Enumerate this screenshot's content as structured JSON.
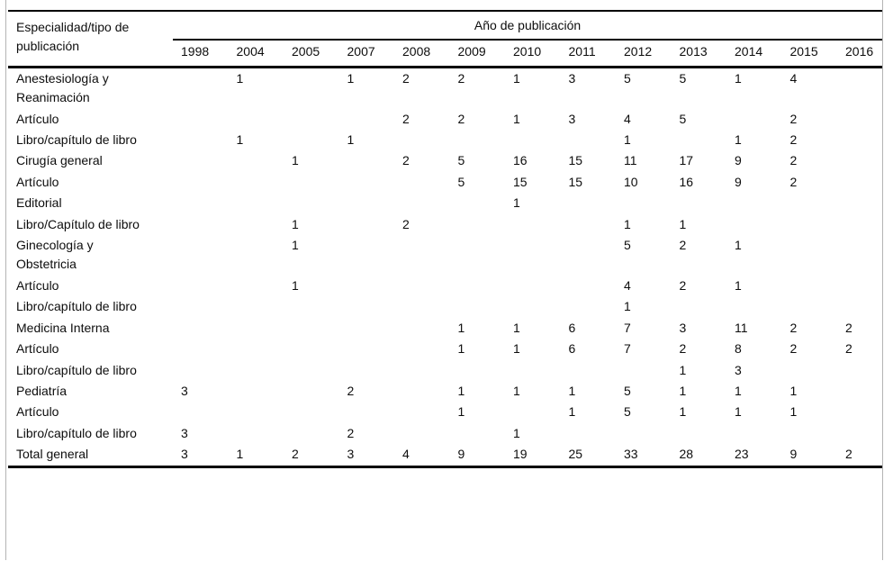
{
  "chart_data": {
    "type": "table",
    "corner_header": "Especialidad/tipo de publicación",
    "column_group_header": "Año de publicación",
    "columns": [
      "1998",
      "2004",
      "2005",
      "2007",
      "2008",
      "2009",
      "2010",
      "2011",
      "2012",
      "2013",
      "2014",
      "2015",
      "2016"
    ],
    "rows": [
      {
        "label": "Anestesiología y Reanimación",
        "values": [
          "",
          "1",
          "",
          "1",
          "2",
          "2",
          "1",
          "3",
          "5",
          "5",
          "1",
          "4",
          ""
        ]
      },
      {
        "label": "Artículo",
        "values": [
          "",
          "",
          "",
          "",
          "2",
          "2",
          "1",
          "3",
          "4",
          "5",
          "",
          "2",
          ""
        ]
      },
      {
        "label": "Libro/capítulo de libro",
        "values": [
          "",
          "1",
          "",
          "1",
          "",
          "",
          "",
          "",
          "1",
          "",
          "1",
          "2",
          ""
        ]
      },
      {
        "label": "Cirugía general",
        "values": [
          "",
          "",
          "1",
          "",
          "2",
          "5",
          "16",
          "15",
          "11",
          "17",
          "9",
          "2",
          ""
        ]
      },
      {
        "label": "Artículo",
        "values": [
          "",
          "",
          "",
          "",
          "",
          "5",
          "15",
          "15",
          "10",
          "16",
          "9",
          "2",
          ""
        ]
      },
      {
        "label": "Editorial",
        "values": [
          "",
          "",
          "",
          "",
          "",
          "",
          "1",
          "",
          "",
          "",
          "",
          "",
          ""
        ]
      },
      {
        "label": "Libro/Capítulo de libro",
        "values": [
          "",
          "",
          "1",
          "",
          "2",
          "",
          "",
          "",
          "1",
          "1",
          "",
          "",
          ""
        ]
      },
      {
        "label": "Ginecología y Obstetricia",
        "values": [
          "",
          "",
          "1",
          "",
          "",
          "",
          "",
          "",
          "5",
          "2",
          "1",
          "",
          ""
        ]
      },
      {
        "label": "Artículo",
        "values": [
          "",
          "",
          "1",
          "",
          "",
          "",
          "",
          "",
          "4",
          "2",
          "1",
          "",
          ""
        ]
      },
      {
        "label": "Libro/capítulo de libro",
        "values": [
          "",
          "",
          "",
          "",
          "",
          "",
          "",
          "",
          "1",
          "",
          "",
          "",
          ""
        ]
      },
      {
        "label": "Medicina Interna",
        "values": [
          "",
          "",
          "",
          "",
          "",
          "1",
          "1",
          "6",
          "7",
          "3",
          "11",
          "2",
          "2"
        ]
      },
      {
        "label": "Artículo",
        "values": [
          "",
          "",
          "",
          "",
          "",
          "1",
          "1",
          "6",
          "7",
          "2",
          "8",
          "2",
          "2"
        ]
      },
      {
        "label": "Libro/capítulo de libro",
        "values": [
          "",
          "",
          "",
          "",
          "",
          "",
          "",
          "",
          "",
          "1",
          "3",
          "",
          ""
        ]
      },
      {
        "label": "Pediatría",
        "values": [
          "3",
          "",
          "",
          "2",
          "",
          "1",
          "1",
          "1",
          "5",
          "1",
          "1",
          "1",
          ""
        ]
      },
      {
        "label": "Artículo",
        "values": [
          "",
          "",
          "",
          "",
          "",
          "1",
          "",
          "1",
          "5",
          "1",
          "1",
          "1",
          ""
        ]
      },
      {
        "label": "Libro/capítulo de libro",
        "values": [
          "3",
          "",
          "",
          "2",
          "",
          "",
          "1",
          "",
          "",
          "",
          "",
          "",
          ""
        ]
      },
      {
        "label": "Total general",
        "values": [
          "3",
          "1",
          "2",
          "3",
          "4",
          "9",
          "19",
          "25",
          "33",
          "28",
          "23",
          "9",
          "2"
        ]
      }
    ]
  },
  "colors": {
    "rule": "#000000",
    "frame": "#b4b4b4",
    "text": "#0d0d0d",
    "background": "#ffffff"
  }
}
